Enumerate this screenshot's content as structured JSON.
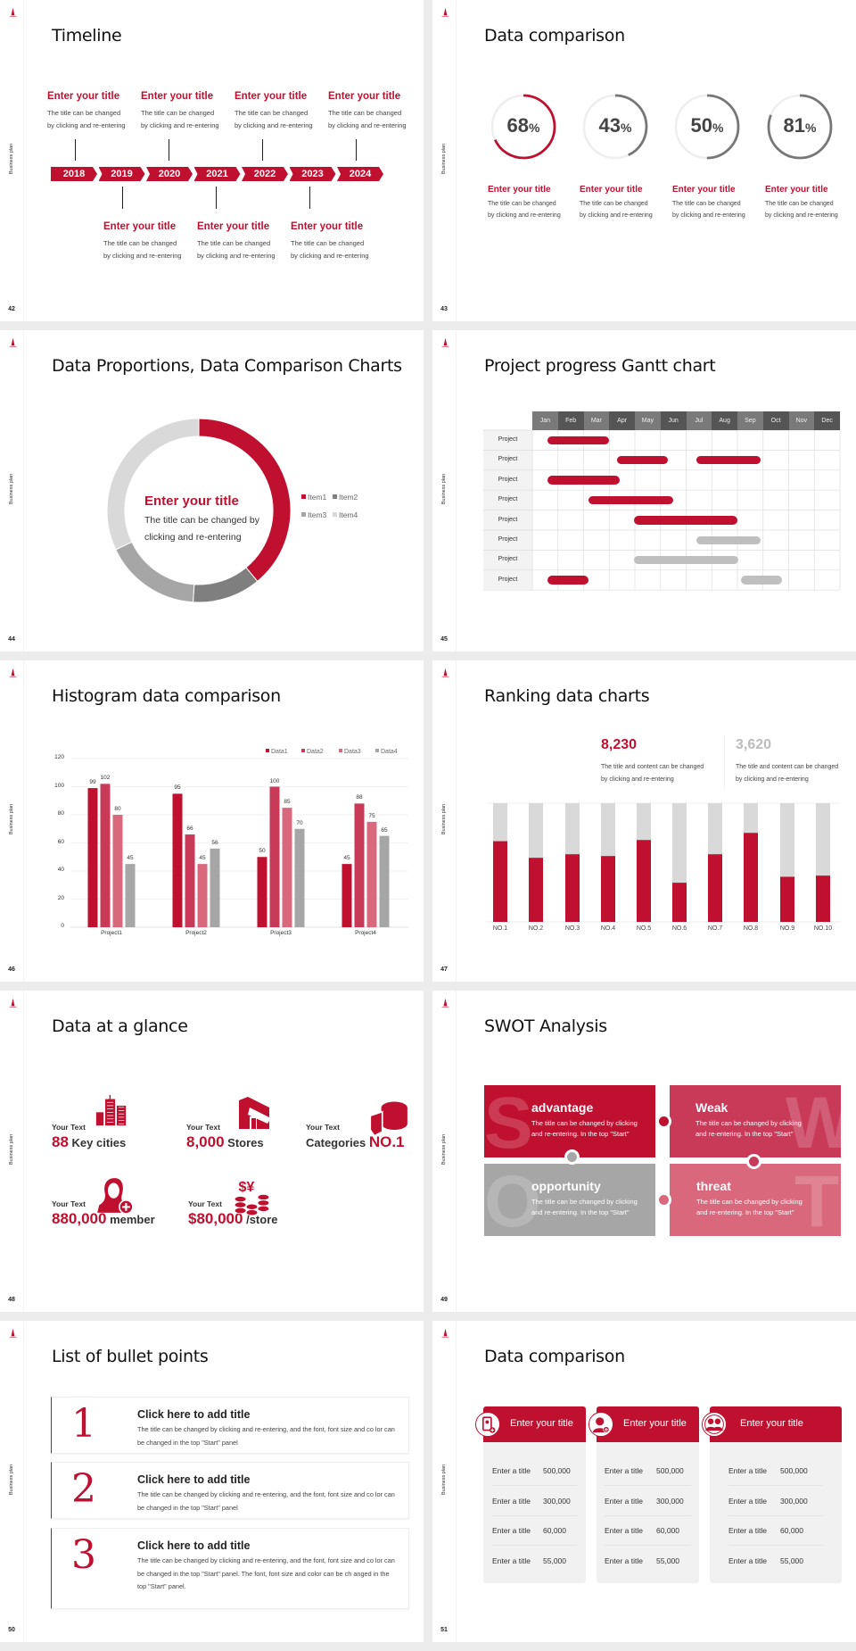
{
  "sidebar_label": "Business plan",
  "colors": {
    "red": "#c0102f",
    "red2": "#c93a59",
    "red3": "#d9687c",
    "gray": "#a6a6a6",
    "lightgray": "#d9d9d9",
    "darkgray": "#777777"
  },
  "timeline": {
    "page": "42",
    "title": "Timeline",
    "years": [
      "2018",
      "2019",
      "2020",
      "2021",
      "2022",
      "2023",
      "2024"
    ],
    "top_items": [
      {
        "title": "Enter your title",
        "desc": "The title can be changed\nby clicking and re-entering"
      },
      {
        "title": "Enter your title",
        "desc": "The title can be changed\nby clicking and re-entering"
      },
      {
        "title": "Enter your title",
        "desc": "The title can be changed\nby clicking and re-entering"
      },
      {
        "title": "Enter your title",
        "desc": "The title can be changed\nby clicking and re-entering"
      }
    ],
    "bottom_items": [
      {
        "title": "Enter your title",
        "desc": "The title can be changed\nby clicking and re-entering"
      },
      {
        "title": "Enter your title",
        "desc": "The title can be changed\nby clicking and re-entering"
      },
      {
        "title": "Enter your title",
        "desc": "The title can be changed\nby clicking and re-entering"
      }
    ]
  },
  "progress": {
    "page": "43",
    "title": "Data comparison",
    "items": [
      {
        "value": 68,
        "number": "68",
        "unit": "%",
        "title": "Enter your title",
        "desc": "The title can be changed\nby clicking and re-entering",
        "color": "#c0102f"
      },
      {
        "value": 43,
        "number": "43",
        "unit": "%",
        "title": "Enter your title",
        "desc": "The title can be changed\nby clicking and re-entering",
        "color": "#777777"
      },
      {
        "value": 50,
        "number": "50",
        "unit": "%",
        "title": "Enter your title",
        "desc": "The title can be changed\nby clicking and re-entering",
        "color": "#777777"
      },
      {
        "value": 81,
        "number": "81",
        "unit": "%",
        "title": "Enter your title",
        "desc": "The title can be changed\nby clicking and re-entering",
        "color": "#777777"
      }
    ]
  },
  "donut": {
    "page": "44",
    "title": "Data Proportions, Data Comparison Charts",
    "center_title": "Enter your title",
    "center_desc": "The title can be changed by\nclicking and re-entering"
  },
  "gantt": {
    "page": "45",
    "title": "Project progress Gantt chart",
    "months": [
      "Jan",
      "Feb",
      "Mar",
      "Apr",
      "May",
      "Jun",
      "Jul",
      "Aug",
      "Sep",
      "Oct",
      "Nov",
      "Dec"
    ],
    "row_label": "Project"
  },
  "histogram": {
    "page": "46",
    "title": "Histogram data comparison"
  },
  "ranking": {
    "page": "47",
    "title": "Ranking data charts",
    "stats": [
      {
        "value": "8,230",
        "desc": "The title and content can be changed\nby clicking and re-entering",
        "color": "#c0102f"
      },
      {
        "value": "3,620",
        "desc": "The title and content can be changed\nby clicking and re-entering",
        "color": "#bbbbbb"
      }
    ]
  },
  "glance": {
    "page": "48",
    "title": "Data at a glance",
    "items": [
      {
        "label": "Your Text",
        "number": "88",
        "text": "Key cities",
        "icon": "buildings-icon"
      },
      {
        "label": "Your Text",
        "number": "8,000",
        "text": "Stores",
        "icon": "store-icon"
      },
      {
        "label": "Your Text",
        "text": "Categories",
        "number": "NO.1",
        "icon": "cheese-icon"
      },
      {
        "label": "Your Text",
        "number": "880,000",
        "text": "member",
        "icon": "person-add-icon"
      },
      {
        "label": "Your Text",
        "number": "$80,000",
        "text": "/store",
        "icon": "coins-icon"
      }
    ]
  },
  "swot": {
    "page": "49",
    "title": "SWOT Analysis",
    "quadrants": [
      {
        "letter": "S",
        "title": "advantage",
        "desc": "The title can be changed by clicking and re-entering. In the top \"Start\"",
        "color": "#c0102f"
      },
      {
        "letter": "W",
        "title": "Weak",
        "desc": "The title can be changed by clicking and re-entering. In the top \"Start\"",
        "color": "#c93a59"
      },
      {
        "letter": "O",
        "title": "opportunity",
        "desc": "The title can be changed by clicking and re-entering. In the top \"Start\"",
        "color": "#a6a6a6"
      },
      {
        "letter": "T",
        "title": "threat",
        "desc": "The title can be changed by clicking and re-entering. In the top \"Start\"",
        "color": "#d9687c"
      }
    ]
  },
  "bullets": {
    "page": "50",
    "title": "List of bullet points",
    "items": [
      {
        "number": "1",
        "title": "Click here to add title",
        "desc": "The title can be changed by clicking and re-entering, and the font, font size and co lor can be changed in the top \"Start\" panel"
      },
      {
        "number": "2",
        "title": "Click here to add title",
        "desc": "The title can be changed by clicking and re-entering, and the font, font size and co lor can be changed in the top \"Start\" panel"
      },
      {
        "number": "3",
        "title": "Click here to add title",
        "desc": "The title can be changed by clicking and re-entering, and the font, font size and co lor can be changed in the top \"Start\" panel. The font, font size and color can be ch anged in the top \"Start\" panel."
      }
    ]
  },
  "cards": {
    "page": "51",
    "title": "Data comparison",
    "items": [
      {
        "header": "Enter your title",
        "icon": "contact-card-add-icon",
        "rows": [
          {
            "label": "Enter a title",
            "value": "500,000"
          },
          {
            "label": "Enter a title",
            "value": "300,000"
          },
          {
            "label": "Enter a title",
            "value": "60,000"
          },
          {
            "label": "Enter a title",
            "value": "55,000"
          }
        ]
      },
      {
        "header": "Enter your title",
        "icon": "user-add-icon",
        "rows": [
          {
            "label": "Enter a title",
            "value": "500,000"
          },
          {
            "label": "Enter a title",
            "value": "300,000"
          },
          {
            "label": "Enter a title",
            "value": "60,000"
          },
          {
            "label": "Enter a title",
            "value": "55,000"
          }
        ]
      },
      {
        "header": "Enter your title",
        "icon": "user-group-icon",
        "rows": [
          {
            "label": "Enter a title",
            "value": "500,000"
          },
          {
            "label": "Enter a title",
            "value": "300,000"
          },
          {
            "label": "Enter a title",
            "value": "60,000"
          },
          {
            "label": "Enter a title",
            "value": "55,000"
          }
        ]
      }
    ]
  },
  "chart_data": [
    {
      "type": "pie",
      "variant": "donut",
      "legend": "right",
      "categories": [
        "Item1",
        "Item2",
        "Item3",
        "Item4"
      ],
      "values": [
        39,
        12,
        17,
        32
      ],
      "colors": [
        "#c0102f",
        "#7f7f7f",
        "#a6a6a6",
        "#d9d9d9"
      ]
    },
    {
      "type": "bar",
      "variant": "gantt",
      "xlabel": "",
      "ylabel": "",
      "rows": [
        [
          {
            "start": 0.6,
            "end": 3.0,
            "color": "#c0102f"
          }
        ],
        [
          {
            "start": 3.3,
            "end": 5.3,
            "color": "#c0102f"
          },
          {
            "start": 6.4,
            "end": 8.9,
            "color": "#c0102f"
          }
        ],
        [
          {
            "start": 0.6,
            "end": 3.4,
            "color": "#c0102f"
          }
        ],
        [
          {
            "start": 2.2,
            "end": 5.5,
            "color": "#c0102f"
          }
        ],
        [
          {
            "start": 3.95,
            "end": 8.0,
            "color": "#c0102f"
          }
        ],
        [
          {
            "start": 6.4,
            "end": 8.9,
            "color": "#bfbfbf"
          }
        ],
        [
          {
            "start": 3.95,
            "end": 8.05,
            "color": "#bfbfbf"
          }
        ],
        [
          {
            "start": 0.6,
            "end": 2.2,
            "color": "#c0102f"
          },
          {
            "start": 8.15,
            "end": 9.75,
            "color": "#bfbfbf"
          }
        ]
      ]
    },
    {
      "type": "bar",
      "legend": "top-right",
      "grid": true,
      "categories": [
        "Project1",
        "Project2",
        "Project3",
        "Project4"
      ],
      "ylim": [
        0,
        120
      ],
      "yticks": [
        0,
        20,
        40,
        60,
        80,
        100,
        120
      ],
      "series": [
        {
          "name": "Data1",
          "values": [
            99,
            95,
            50,
            45
          ],
          "color": "#c0102f"
        },
        {
          "name": "Data2",
          "values": [
            102,
            66,
            100,
            88
          ],
          "color": "#c93a59"
        },
        {
          "name": "Data3",
          "values": [
            80,
            45,
            85,
            75
          ],
          "color": "#d9687c"
        },
        {
          "name": "Data4",
          "values": [
            45,
            56,
            70,
            65
          ],
          "color": "#a6a6a6"
        }
      ]
    },
    {
      "type": "bar",
      "variant": "stacked-100",
      "categories": [
        "NO.1",
        "NO.2",
        "NO.3",
        "NO.4",
        "NO.5",
        "NO.6",
        "NO.7",
        "NO.8",
        "NO.9",
        "NO.10"
      ],
      "values": [
        0.68,
        0.54,
        0.57,
        0.555,
        0.69,
        0.33,
        0.57,
        0.75,
        0.38,
        0.39
      ],
      "ylim": [
        0,
        1
      ],
      "colors": [
        "#c0102f",
        "#d9d9d9"
      ]
    }
  ]
}
